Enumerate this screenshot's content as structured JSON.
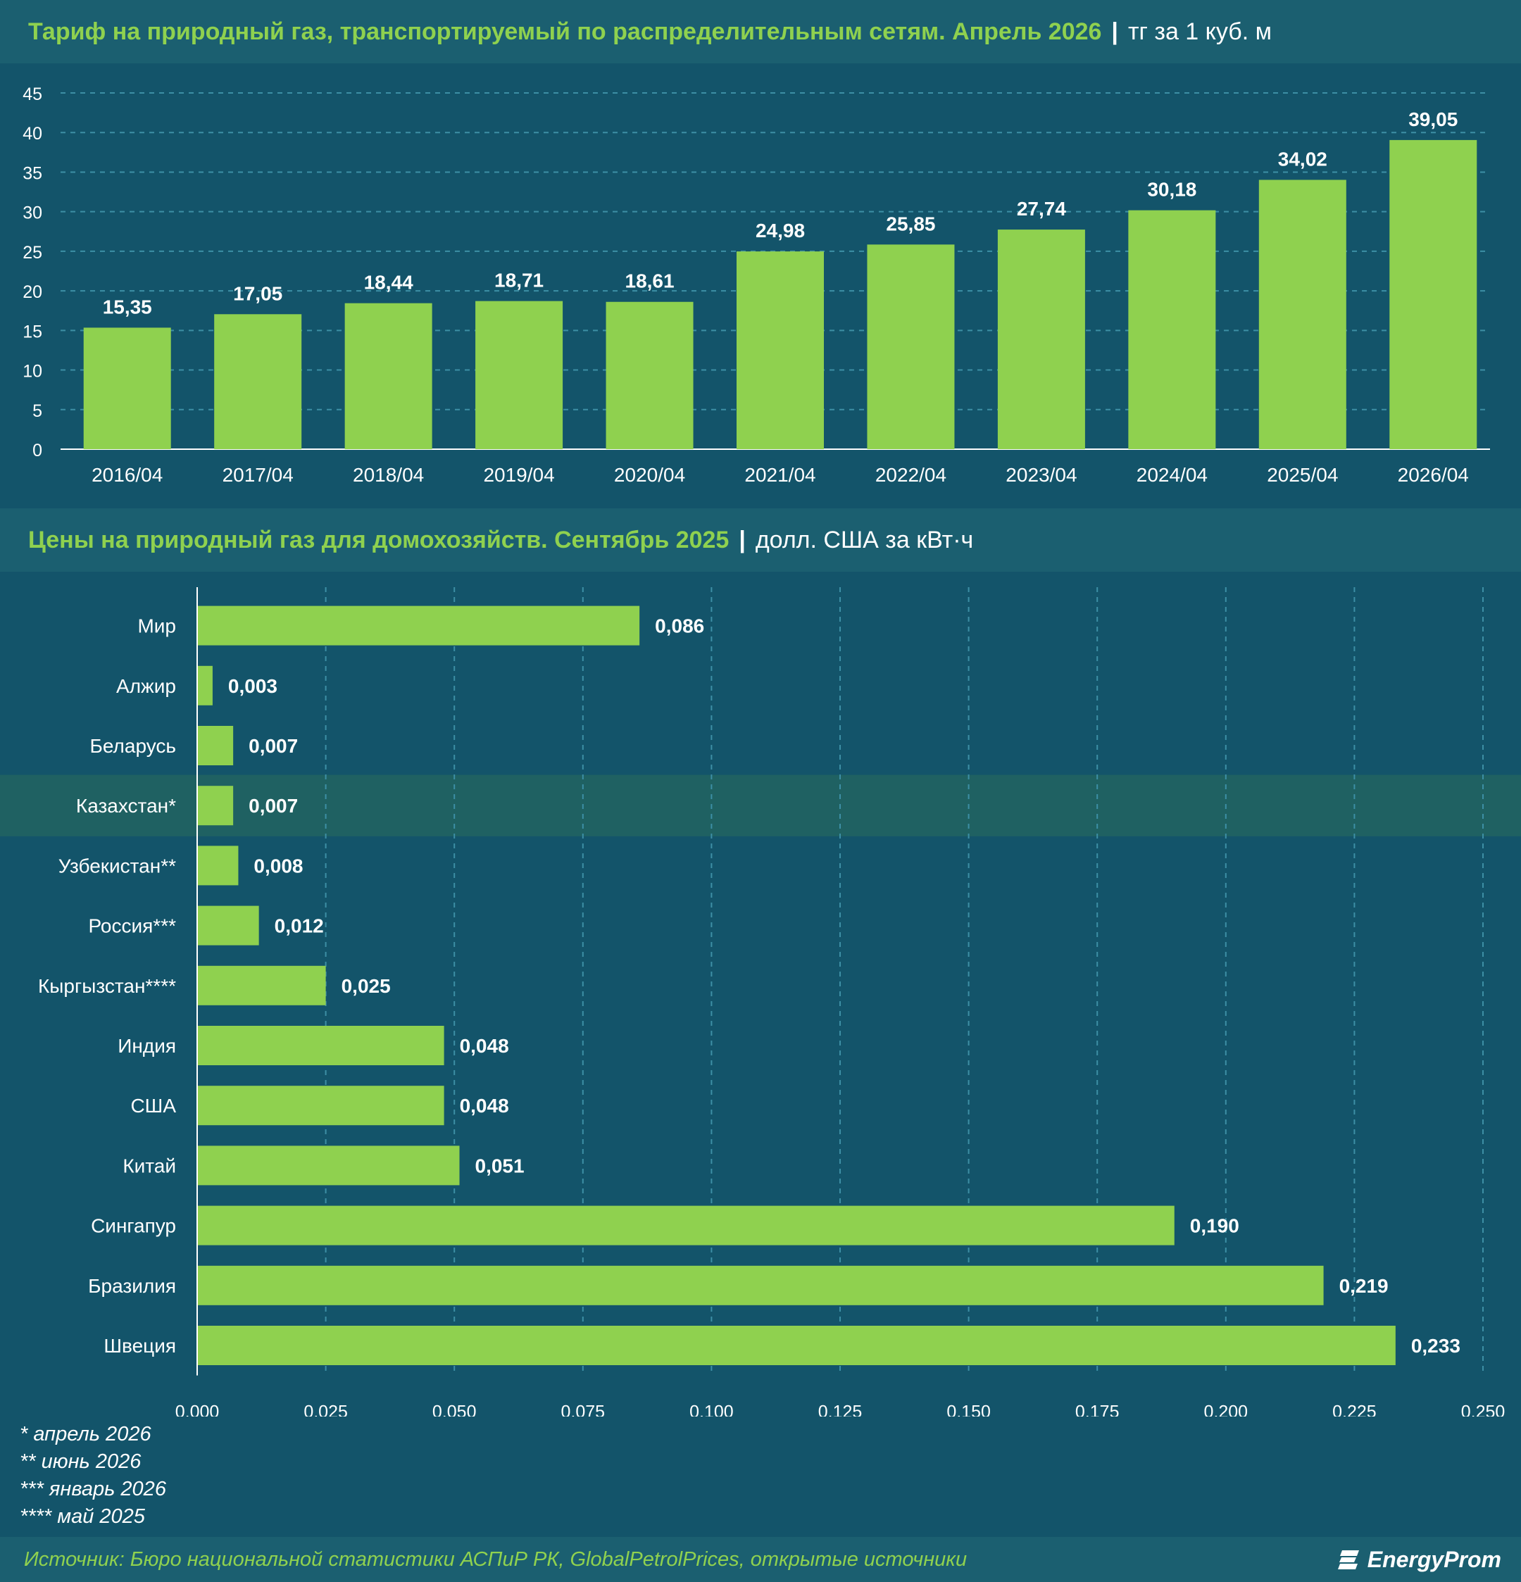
{
  "chart_data": [
    {
      "type": "bar",
      "orientation": "vertical",
      "title": "Тариф на природный газ, транспортируемый по распределительным сетям. Апрель 2026",
      "unit": "тг за 1 куб. м",
      "categories": [
        "2016/04",
        "2017/04",
        "2018/04",
        "2019/04",
        "2020/04",
        "2021/04",
        "2022/04",
        "2023/04",
        "2024/04",
        "2025/04",
        "2026/04"
      ],
      "values": [
        15.35,
        17.05,
        18.44,
        18.71,
        18.61,
        24.98,
        25.85,
        27.74,
        30.18,
        34.02,
        39.05
      ],
      "value_labels": [
        "15,35",
        "17,05",
        "18,44",
        "18,71",
        "18,61",
        "24,98",
        "25,85",
        "27,74",
        "30,18",
        "34,02",
        "39,05"
      ],
      "ylim": [
        0,
        45
      ],
      "yticks": [
        0,
        5,
        10,
        15,
        20,
        25,
        30,
        35,
        40,
        45
      ],
      "grid": true,
      "bar_color": "#8fd14f"
    },
    {
      "type": "bar",
      "orientation": "horizontal",
      "title": "Цены на природный газ для домохозяйств. Сентябрь 2025",
      "unit": "долл. США за кВт·ч",
      "categories": [
        "Мир",
        "Алжир",
        "Беларусь",
        "Казахстан*",
        "Узбекистан**",
        "Россия***",
        "Кыргызстан****",
        "Индия",
        "США",
        "Китай",
        "Сингапур",
        "Бразилия",
        "Швеция"
      ],
      "values": [
        0.086,
        0.003,
        0.007,
        0.007,
        0.008,
        0.012,
        0.025,
        0.048,
        0.048,
        0.051,
        0.19,
        0.219,
        0.233
      ],
      "value_labels": [
        "0,086",
        "0,003",
        "0,007",
        "0,007",
        "0,008",
        "0,012",
        "0,025",
        "0,048",
        "0,048",
        "0,051",
        "0,190",
        "0,219",
        "0,233"
      ],
      "highlight": "Казахстан*",
      "xlim": [
        0,
        0.25
      ],
      "xticks": [
        "0,000",
        "0,025",
        "0,050",
        "0,075",
        "0,100",
        "0,125",
        "0,150",
        "0,175",
        "0,200",
        "0,225",
        "0,250"
      ],
      "grid": true,
      "bar_color": "#8fd14f"
    }
  ],
  "footnotes": [
    "* апрель 2026",
    "** июнь 2026",
    "*** январь 2026",
    "**** май 2025"
  ],
  "source": "Источник: Бюро национальной статистики АСПиР РК, GlobalPetrolPrices, открытые источники",
  "brand": "EnergyProm",
  "colors": {
    "background": "#13546a",
    "title_bar": "#1b5f70",
    "accent": "#8fd14f",
    "highlight_row": "#1f6162"
  }
}
